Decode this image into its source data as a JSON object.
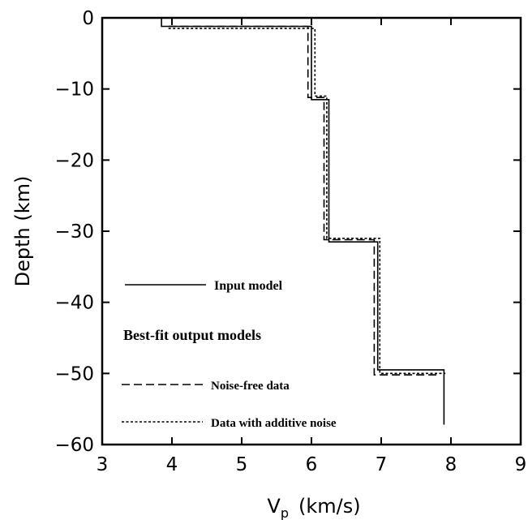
{
  "chart_data": {
    "type": "line",
    "xlabel_main": "V",
    "xlabel_sub": "p",
    "xlabel_units": "(km/s)",
    "ylabel": "Depth (km)",
    "xlim": [
      3,
      9
    ],
    "ylim": [
      -60,
      0
    ],
    "xticks": [
      3,
      4,
      5,
      6,
      7,
      8,
      9
    ],
    "yticks": [
      0,
      -10,
      -20,
      -30,
      -40,
      -50,
      -60
    ],
    "grid": false,
    "legend": {
      "input_label": "Input model",
      "heading": "Best-fit output models",
      "noise_free_label": "Noise-free data",
      "noisy_label": "Data with additive noise"
    },
    "series": [
      {
        "name": "Input model",
        "style": "solid",
        "points": [
          [
            3.85,
            0
          ],
          [
            3.85,
            -1.2
          ],
          [
            6.0,
            -1.2
          ],
          [
            6.0,
            -11.5
          ],
          [
            6.25,
            -11.5
          ],
          [
            6.25,
            -31.5
          ],
          [
            6.95,
            -31.5
          ],
          [
            6.95,
            -49.5
          ],
          [
            7.9,
            -49.5
          ],
          [
            7.9,
            -57.2
          ]
        ]
      },
      {
        "name": "Noise-free data",
        "style": "dashed",
        "points": [
          [
            3.95,
            -1.2
          ],
          [
            5.95,
            -1.2
          ],
          [
            5.95,
            -11.2
          ],
          [
            6.18,
            -11.2
          ],
          [
            6.18,
            -31.2
          ],
          [
            6.9,
            -31.2
          ],
          [
            6.9,
            -50.2
          ],
          [
            7.85,
            -50.2
          ]
        ]
      },
      {
        "name": "Data with additive noise",
        "style": "dotted",
        "points": [
          [
            3.95,
            -1.5
          ],
          [
            6.05,
            -1.5
          ],
          [
            6.05,
            -11.0
          ],
          [
            6.22,
            -11.0
          ],
          [
            6.22,
            -31.0
          ],
          [
            6.98,
            -31.0
          ],
          [
            6.98,
            -50.0
          ],
          [
            7.92,
            -50.0
          ]
        ]
      }
    ]
  }
}
